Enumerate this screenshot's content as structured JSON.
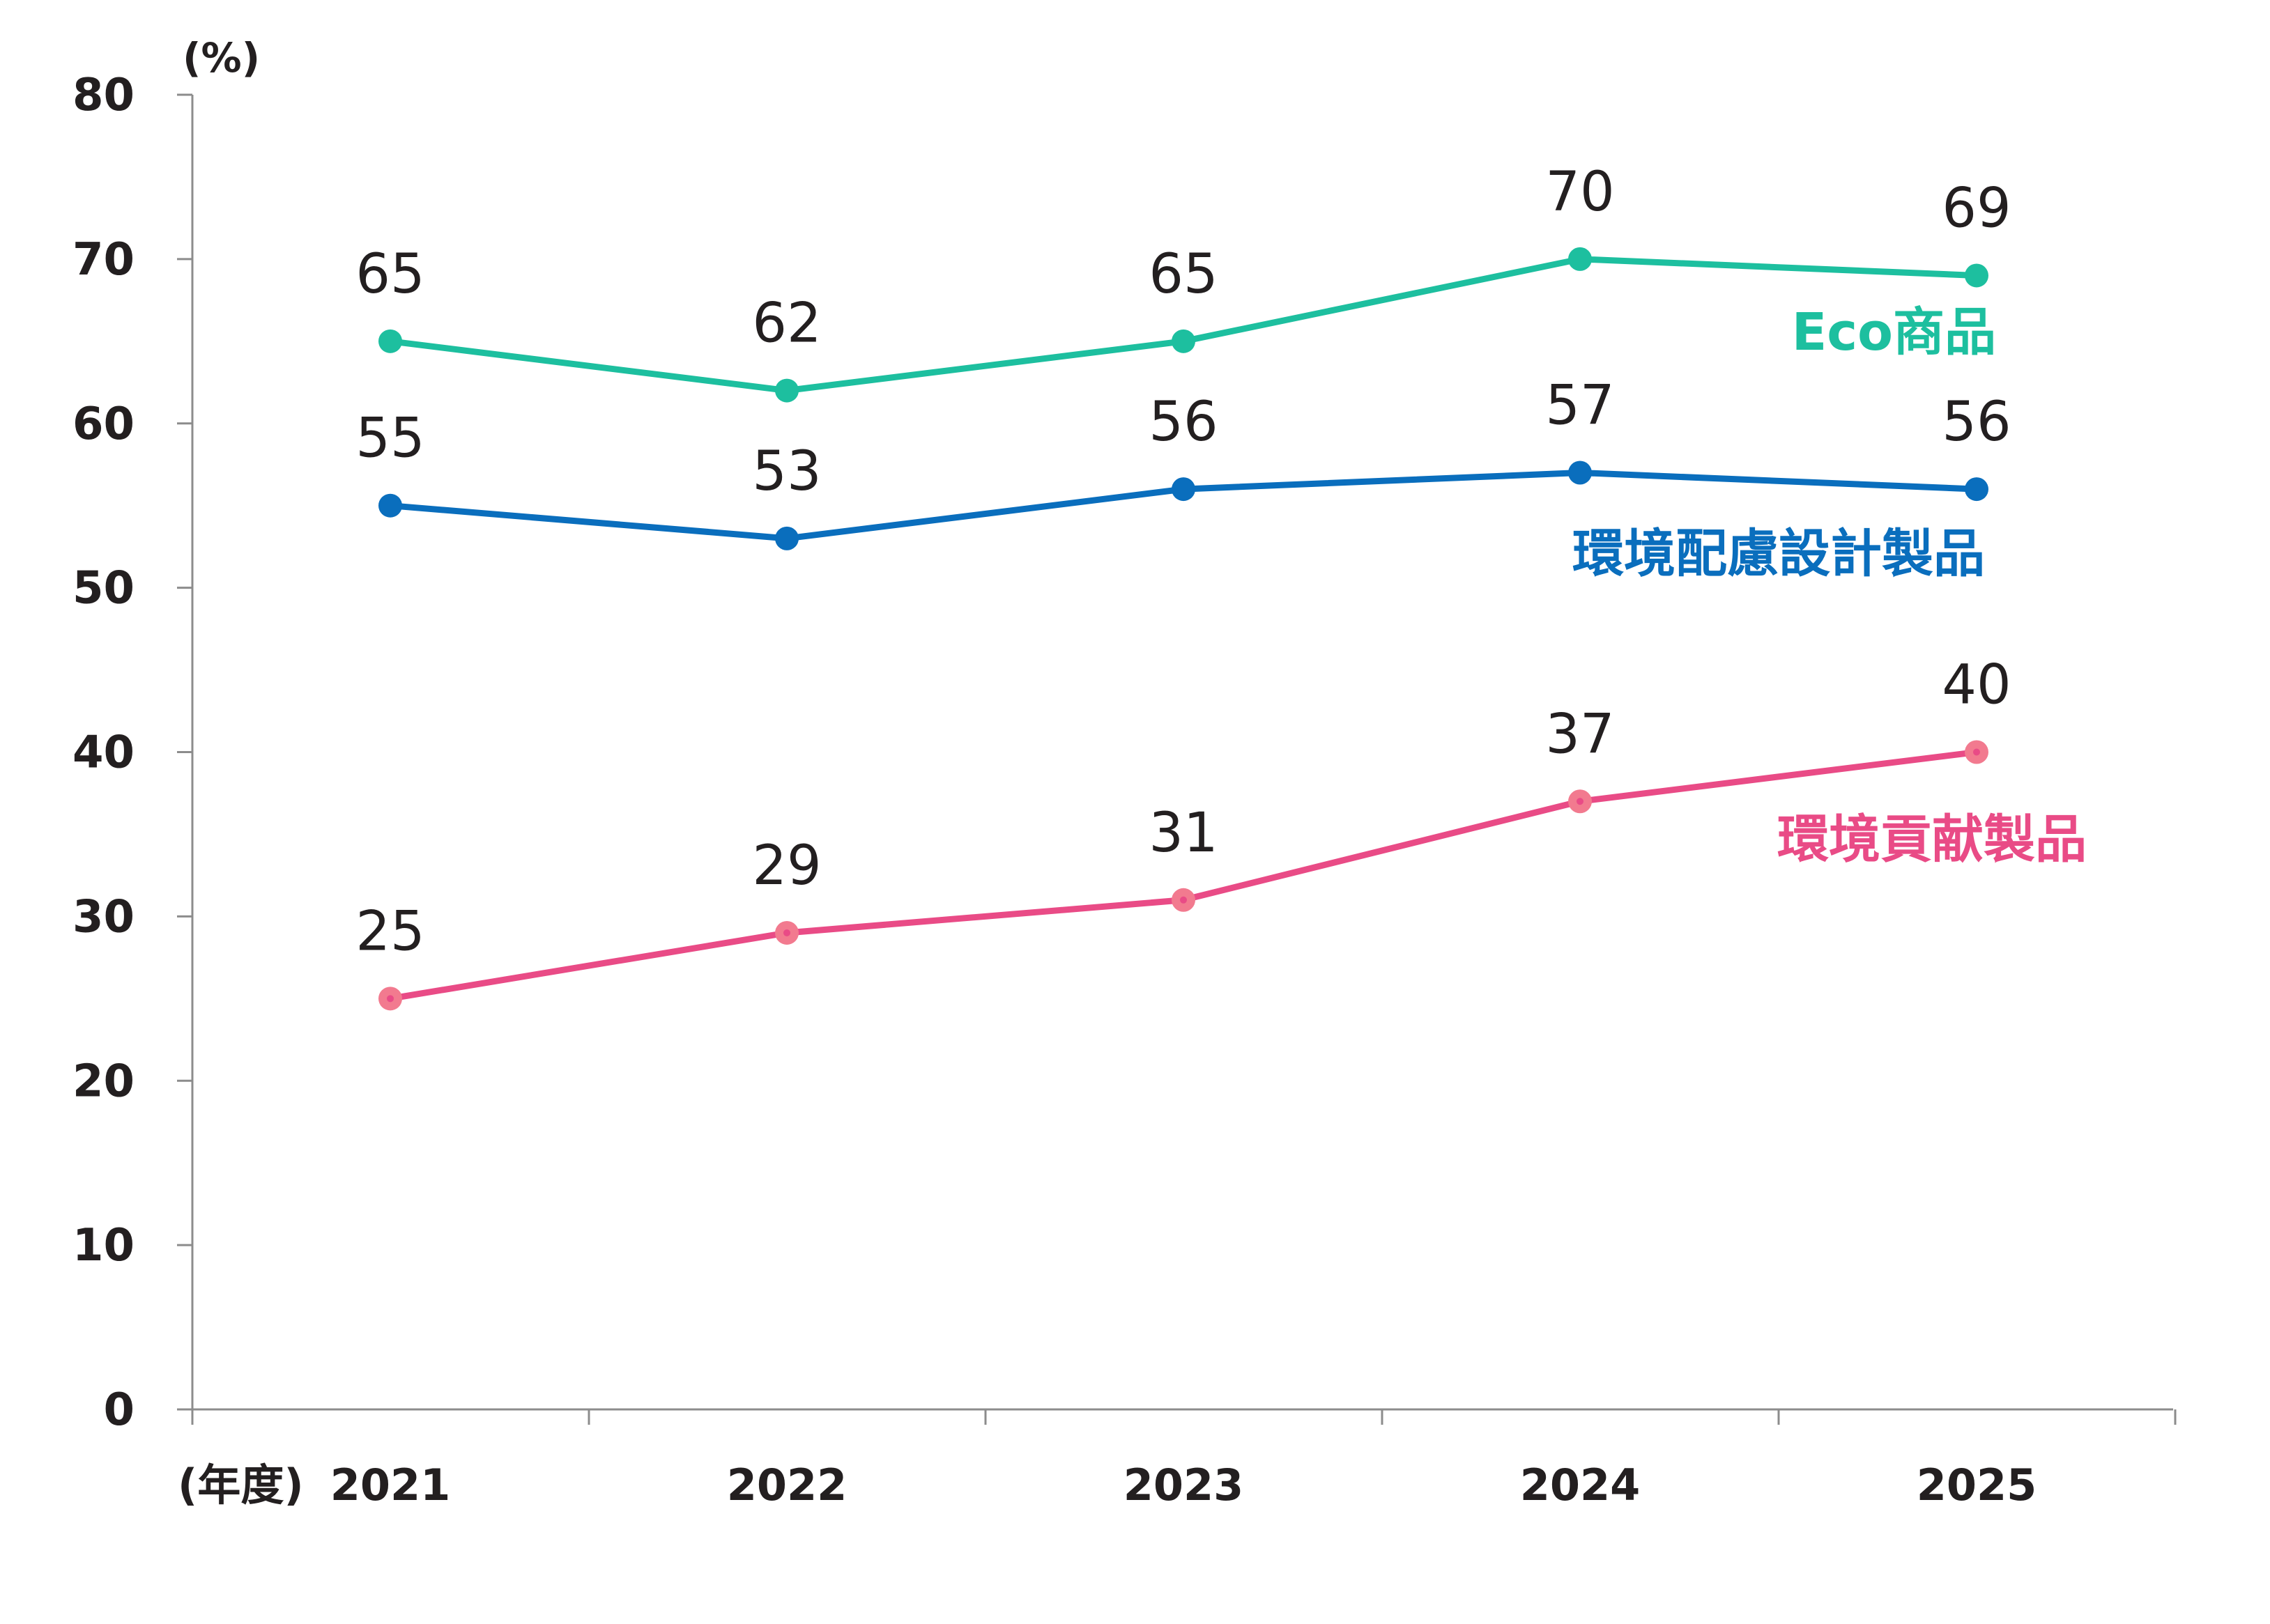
{
  "chart_data": {
    "type": "line",
    "y_unit_label": "(%)",
    "x_unit_label": "(年度)",
    "categories": [
      "2021",
      "2022",
      "2023",
      "2024",
      "2025"
    ],
    "ylim": [
      0,
      80
    ],
    "yticks": [
      0,
      10,
      20,
      30,
      40,
      50,
      60,
      70,
      80
    ],
    "grid": false,
    "series": [
      {
        "name": "Eco商品",
        "color": "#1dbf9f",
        "values": [
          65,
          62,
          65,
          70,
          69
        ]
      },
      {
        "name": "環境配慮設計製品",
        "color": "#0a6ebd",
        "values": [
          55,
          53,
          56,
          57,
          56
        ]
      },
      {
        "name": "環境貢献製品",
        "color": "#e94b86",
        "marker_color": "#f27a8f",
        "values": [
          25,
          29,
          31,
          37,
          40
        ]
      }
    ]
  }
}
